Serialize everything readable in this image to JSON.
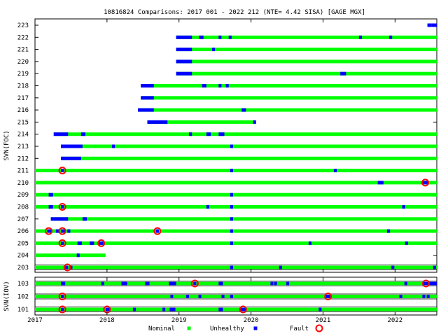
{
  "chart_data": {
    "type": "timeline",
    "title": "10816824 Comparisons: 2017 001 - 2022 212 (NTE= 4.42 SISA) [GAGE MGX]",
    "xlim": [
      2017.0,
      2022.58
    ],
    "x_ticks": [
      "2017",
      "2018",
      "2019",
      "2020",
      "2021",
      "2022"
    ],
    "legend": [
      {
        "label": "Nominal",
        "color": "#00ff00",
        "marker": "square"
      },
      {
        "label": "Unhealthy",
        "color": "#0000ff",
        "marker": "square"
      },
      {
        "label": "Fault",
        "color": "#ff0000",
        "marker": "circle"
      }
    ],
    "colors": {
      "nominal": "#00ff00",
      "unhealthy": "#0000ff",
      "fault": "#ff0000"
    },
    "panels": [
      {
        "ylabel": "SVN(FOC)",
        "rows": [
          {
            "svn": "223",
            "start": 2022.45,
            "end": 2022.58,
            "unhealthy": [
              [
                2022.45,
                2022.51
              ],
              [
                2022.51,
                2022.58
              ]
            ],
            "faults": [],
            "boxed": false
          },
          {
            "svn": "222",
            "start": 2018.96,
            "end": 2022.58,
            "unhealthy": [
              [
                2018.96,
                2019.18
              ],
              [
                2019.28,
                2019.34
              ],
              [
                2019.55,
                2019.59
              ],
              [
                2019.69,
                2019.73
              ],
              [
                2021.5,
                2021.54
              ],
              [
                2021.92,
                2021.96
              ]
            ],
            "faults": [],
            "boxed": false
          },
          {
            "svn": "221",
            "start": 2018.96,
            "end": 2022.58,
            "unhealthy": [
              [
                2018.96,
                2019.18
              ],
              [
                2019.46,
                2019.5
              ]
            ],
            "faults": [],
            "boxed": false
          },
          {
            "svn": "220",
            "start": 2018.96,
            "end": 2022.58,
            "unhealthy": [
              [
                2018.96,
                2019.18
              ]
            ],
            "faults": [],
            "boxed": false
          },
          {
            "svn": "219",
            "start": 2018.96,
            "end": 2022.58,
            "unhealthy": [
              [
                2018.96,
                2019.18
              ],
              [
                2021.24,
                2021.32
              ]
            ],
            "faults": [],
            "boxed": false
          },
          {
            "svn": "218",
            "start": 2018.47,
            "end": 2022.58,
            "unhealthy": [
              [
                2018.47,
                2018.65
              ],
              [
                2019.32,
                2019.38
              ],
              [
                2019.55,
                2019.59
              ],
              [
                2019.65,
                2019.69
              ]
            ],
            "faults": [],
            "boxed": false
          },
          {
            "svn": "217",
            "start": 2018.47,
            "end": 2022.58,
            "unhealthy": [
              [
                2018.47,
                2018.65
              ]
            ],
            "faults": [],
            "boxed": false
          },
          {
            "svn": "216",
            "start": 2018.43,
            "end": 2022.58,
            "unhealthy": [
              [
                2018.43,
                2018.65
              ],
              [
                2019.87,
                2019.93
              ]
            ],
            "faults": [],
            "boxed": false
          },
          {
            "svn": "215",
            "start": 2018.56,
            "end": 2020.05,
            "unhealthy": [
              [
                2018.56,
                2018.84
              ],
              [
                2020.03,
                2020.07
              ]
            ],
            "faults": [],
            "boxed": false
          },
          {
            "svn": "214",
            "start": 2017.26,
            "end": 2022.58,
            "unhealthy": [
              [
                2017.26,
                2017.46
              ],
              [
                2017.64,
                2017.7
              ],
              [
                2019.14,
                2019.18
              ],
              [
                2019.38,
                2019.44
              ],
              [
                2019.55,
                2019.63
              ]
            ],
            "faults": [],
            "boxed": false
          },
          {
            "svn": "213",
            "start": 2017.36,
            "end": 2022.58,
            "unhealthy": [
              [
                2017.36,
                2017.66
              ],
              [
                2018.07,
                2018.11
              ],
              [
                2019.71,
                2019.75
              ]
            ],
            "faults": [],
            "boxed": false
          },
          {
            "svn": "212",
            "start": 2017.36,
            "end": 2022.58,
            "unhealthy": [
              [
                2017.36,
                2017.64
              ]
            ],
            "faults": [],
            "boxed": false
          },
          {
            "svn": "211",
            "start": 2017.0,
            "end": 2022.58,
            "unhealthy": [
              [
                2017.36,
                2017.4
              ],
              [
                2019.71,
                2019.75
              ],
              [
                2021.15,
                2021.19
              ]
            ],
            "faults": [
              2017.38
            ],
            "boxed": false
          },
          {
            "svn": "210",
            "start": 2017.0,
            "end": 2022.58,
            "unhealthy": [
              [
                2021.76,
                2021.84
              ],
              [
                2022.37,
                2022.47
              ]
            ],
            "faults": [
              2022.42
            ],
            "boxed": false
          },
          {
            "svn": "209",
            "start": 2017.0,
            "end": 2022.58,
            "unhealthy": [
              [
                2017.19,
                2017.25
              ],
              [
                2019.71,
                2019.75
              ]
            ],
            "faults": [],
            "boxed": false
          },
          {
            "svn": "208",
            "start": 2017.0,
            "end": 2022.58,
            "unhealthy": [
              [
                2017.19,
                2017.25
              ],
              [
                2017.36,
                2017.4
              ],
              [
                2019.38,
                2019.42
              ],
              [
                2019.71,
                2019.75
              ],
              [
                2022.1,
                2022.14
              ]
            ],
            "faults": [
              2017.38
            ],
            "boxed": false
          },
          {
            "svn": "207",
            "start": 2017.22,
            "end": 2022.58,
            "unhealthy": [
              [
                2017.22,
                2017.46
              ],
              [
                2017.66,
                2017.72
              ],
              [
                2019.71,
                2019.75
              ]
            ],
            "faults": [],
            "boxed": false
          },
          {
            "svn": "206",
            "start": 2017.0,
            "end": 2022.58,
            "unhealthy": [
              [
                2017.17,
                2017.23
              ],
              [
                2017.29,
                2017.33
              ],
              [
                2017.36,
                2017.42
              ],
              [
                2017.45,
                2017.49
              ],
              [
                2018.68,
                2018.72
              ],
              [
                2019.71,
                2019.75
              ],
              [
                2021.89,
                2021.93
              ]
            ],
            "faults": [
              2017.19,
              2017.38,
              2018.7
            ],
            "boxed": false
          },
          {
            "svn": "205",
            "start": 2017.0,
            "end": 2022.58,
            "unhealthy": [
              [
                2017.36,
                2017.4
              ],
              [
                2017.59,
                2017.65
              ],
              [
                2017.76,
                2017.82
              ],
              [
                2017.89,
                2017.95
              ],
              [
                2019.71,
                2019.75
              ],
              [
                2020.8,
                2020.84
              ],
              [
                2022.14,
                2022.18
              ]
            ],
            "faults": [
              2017.38,
              2017.92
            ],
            "boxed": false
          },
          {
            "svn": "204",
            "start": 2017.0,
            "end": 2017.98,
            "unhealthy": [
              [
                2017.58,
                2017.62
              ]
            ],
            "faults": [],
            "boxed": false
          },
          {
            "svn": "203",
            "start": 2017.0,
            "end": 2022.58,
            "unhealthy": [
              [
                2017.42,
                2017.46
              ],
              [
                2017.48,
                2017.52
              ],
              [
                2019.71,
                2019.75
              ],
              [
                2020.39,
                2020.43
              ],
              [
                2021.95,
                2021.99
              ],
              [
                2022.53,
                2022.57
              ]
            ],
            "faults": [
              2017.45
            ],
            "boxed": true
          }
        ]
      },
      {
        "ylabel": "SVN(IOV)",
        "rows": [
          {
            "svn": "103",
            "start": 2017.0,
            "end": 2022.58,
            "unhealthy": [
              [
                2017.36,
                2017.42
              ],
              [
                2017.92,
                2017.96
              ],
              [
                2018.2,
                2018.28
              ],
              [
                2018.53,
                2018.59
              ],
              [
                2018.86,
                2018.96
              ],
              [
                2019.2,
                2019.24
              ],
              [
                2019.55,
                2019.61
              ],
              [
                2020.27,
                2020.31
              ],
              [
                2020.32,
                2020.36
              ],
              [
                2020.49,
                2020.53
              ],
              [
                2022.13,
                2022.17
              ],
              [
                2022.38,
                2022.46
              ],
              [
                2022.47,
                2022.58
              ]
            ],
            "faults": [
              2019.22,
              2022.43
            ],
            "boxed": true
          },
          {
            "svn": "102",
            "start": 2017.0,
            "end": 2022.58,
            "unhealthy": [
              [
                2017.36,
                2017.4
              ],
              [
                2018.88,
                2018.92
              ],
              [
                2019.1,
                2019.14
              ],
              [
                2019.27,
                2019.31
              ],
              [
                2019.59,
                2019.63
              ],
              [
                2019.71,
                2019.75
              ],
              [
                2021.04,
                2021.1
              ],
              [
                2022.06,
                2022.1
              ],
              [
                2022.38,
                2022.42
              ],
              [
                2022.44,
                2022.48
              ]
            ],
            "faults": [
              2017.38,
              2021.07
            ],
            "boxed": true
          },
          {
            "svn": "101",
            "start": 2017.0,
            "end": 2022.58,
            "unhealthy": [
              [
                2017.36,
                2017.4
              ],
              [
                2017.98,
                2018.04
              ],
              [
                2018.36,
                2018.4
              ],
              [
                2018.77,
                2018.81
              ],
              [
                2018.87,
                2018.95
              ],
              [
                2019.55,
                2019.61
              ],
              [
                2019.85,
                2019.93
              ],
              [
                2020.94,
                2020.98
              ]
            ],
            "faults": [
              2017.38,
              2018.0,
              2019.89
            ],
            "boxed": true
          }
        ]
      }
    ]
  }
}
